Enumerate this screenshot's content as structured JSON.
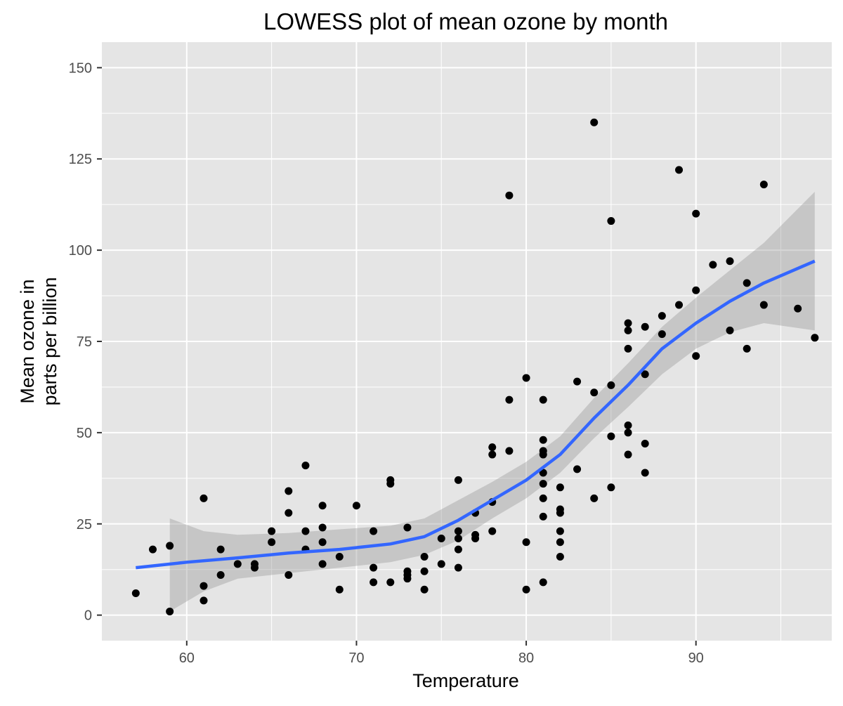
{
  "chart_data": {
    "type": "scatter",
    "title": "LOWESS plot of mean ozone by month",
    "xlabel": "Temperature",
    "ylabel_lines": [
      "Mean ozone in",
      "parts per billion"
    ],
    "xlim": [
      55,
      98
    ],
    "ylim": [
      -7,
      157
    ],
    "x_ticks": [
      60,
      70,
      80,
      90
    ],
    "y_ticks": [
      0,
      25,
      50,
      75,
      100,
      125,
      150
    ],
    "grid": true,
    "legend": "none",
    "colors": {
      "panel_background": "#e5e5e5",
      "grid": "#ffffff",
      "points": "#000000",
      "smooth_line": "#3366ff",
      "confidence_band": "#999999"
    },
    "points": [
      [
        57,
        6
      ],
      [
        58,
        18
      ],
      [
        59,
        19
      ],
      [
        59,
        1
      ],
      [
        61,
        32
      ],
      [
        61,
        8
      ],
      [
        61,
        4
      ],
      [
        62,
        18
      ],
      [
        62,
        11
      ],
      [
        63,
        14
      ],
      [
        64,
        14
      ],
      [
        64,
        13
      ],
      [
        65,
        23
      ],
      [
        65,
        20
      ],
      [
        66,
        34
      ],
      [
        66,
        28
      ],
      [
        66,
        11
      ],
      [
        67,
        41
      ],
      [
        67,
        23
      ],
      [
        67,
        18
      ],
      [
        68,
        30
      ],
      [
        68,
        24
      ],
      [
        68,
        20
      ],
      [
        68,
        14
      ],
      [
        69,
        16
      ],
      [
        69,
        7
      ],
      [
        70,
        30
      ],
      [
        71,
        23
      ],
      [
        71,
        13
      ],
      [
        71,
        9
      ],
      [
        72,
        37
      ],
      [
        72,
        36
      ],
      [
        72,
        9
      ],
      [
        73,
        24
      ],
      [
        73,
        12
      ],
      [
        73,
        11
      ],
      [
        73,
        10
      ],
      [
        74,
        16
      ],
      [
        74,
        12
      ],
      [
        74,
        7
      ],
      [
        75,
        21
      ],
      [
        75,
        14
      ],
      [
        76,
        37
      ],
      [
        76,
        23
      ],
      [
        76,
        21
      ],
      [
        76,
        18
      ],
      [
        76,
        13
      ],
      [
        77,
        28
      ],
      [
        77,
        22
      ],
      [
        77,
        21
      ],
      [
        78,
        46
      ],
      [
        78,
        44
      ],
      [
        78,
        31
      ],
      [
        78,
        23
      ],
      [
        79,
        115
      ],
      [
        79,
        59
      ],
      [
        79,
        45
      ],
      [
        80,
        65
      ],
      [
        80,
        20
      ],
      [
        80,
        7
      ],
      [
        81,
        59
      ],
      [
        81,
        48
      ],
      [
        81,
        45
      ],
      [
        81,
        44
      ],
      [
        81,
        39
      ],
      [
        81,
        36
      ],
      [
        81,
        32
      ],
      [
        81,
        27
      ],
      [
        81,
        9
      ],
      [
        82,
        35
      ],
      [
        82,
        29
      ],
      [
        82,
        28
      ],
      [
        82,
        23
      ],
      [
        82,
        20
      ],
      [
        82,
        16
      ],
      [
        83,
        64
      ],
      [
        83,
        40
      ],
      [
        84,
        135
      ],
      [
        84,
        61
      ],
      [
        84,
        32
      ],
      [
        85,
        108
      ],
      [
        85,
        63
      ],
      [
        85,
        49
      ],
      [
        85,
        35
      ],
      [
        86,
        80
      ],
      [
        86,
        78
      ],
      [
        86,
        73
      ],
      [
        86,
        52
      ],
      [
        86,
        50
      ],
      [
        86,
        44
      ],
      [
        87,
        79
      ],
      [
        87,
        66
      ],
      [
        87,
        47
      ],
      [
        87,
        39
      ],
      [
        88,
        82
      ],
      [
        88,
        77
      ],
      [
        89,
        122
      ],
      [
        89,
        85
      ],
      [
        90,
        110
      ],
      [
        90,
        89
      ],
      [
        90,
        71
      ],
      [
        91,
        96
      ],
      [
        92,
        97
      ],
      [
        92,
        78
      ],
      [
        93,
        91
      ],
      [
        93,
        73
      ],
      [
        94,
        118
      ],
      [
        94,
        85
      ],
      [
        96,
        84
      ],
      [
        97,
        76
      ]
    ],
    "smooth_fit": [
      [
        57,
        13
      ],
      [
        60,
        14.5
      ],
      [
        63,
        15.7
      ],
      [
        66,
        17
      ],
      [
        69,
        18
      ],
      [
        72,
        19.5
      ],
      [
        74,
        21.5
      ],
      [
        76,
        26
      ],
      [
        78,
        31.5
      ],
      [
        80,
        37
      ],
      [
        82,
        44
      ],
      [
        84,
        54
      ],
      [
        86,
        63
      ],
      [
        88,
        73
      ],
      [
        90,
        80
      ],
      [
        92,
        86
      ],
      [
        94,
        91
      ],
      [
        97,
        97
      ]
    ],
    "confidence_band": [
      [
        59,
        1,
        26.5
      ],
      [
        61,
        6.5,
        23
      ],
      [
        63,
        10,
        22
      ],
      [
        66,
        11.5,
        22.5
      ],
      [
        69,
        13,
        23.5
      ],
      [
        72,
        14.5,
        24.5
      ],
      [
        74,
        16.5,
        26.5
      ],
      [
        76,
        20.5,
        31.5
      ],
      [
        78,
        26.5,
        36.5
      ],
      [
        80,
        32,
        42
      ],
      [
        82,
        39,
        49
      ],
      [
        84,
        48.5,
        59.5
      ],
      [
        86,
        57,
        69
      ],
      [
        88,
        66,
        79
      ],
      [
        90,
        73,
        87
      ],
      [
        92,
        77.5,
        94.5
      ],
      [
        94,
        80,
        102
      ],
      [
        97,
        78,
        116
      ]
    ]
  }
}
